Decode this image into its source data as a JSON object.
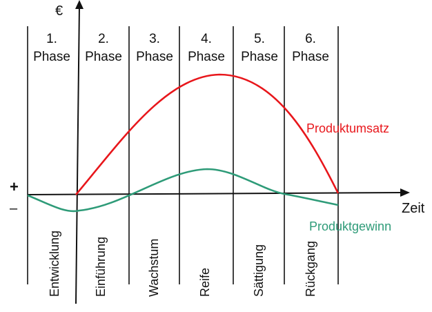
{
  "axes": {
    "y_label": "€",
    "x_label": "Zeit",
    "plus": "+",
    "minus": "–"
  },
  "phases": [
    {
      "number": "1.",
      "label": "Phase",
      "stage": "Entwicklung"
    },
    {
      "number": "2.",
      "label": "Phase",
      "stage": "Einführung"
    },
    {
      "number": "3.",
      "label": "Phase",
      "stage": "Wachstum"
    },
    {
      "number": "4.",
      "label": "Phase",
      "stage": "Reife"
    },
    {
      "number": "5.",
      "label": "Phase",
      "stage": "Sättigung"
    },
    {
      "number": "6.",
      "label": "Phase",
      "stage": "Rückgang"
    }
  ],
  "curves": {
    "revenue": {
      "label": "Produktumsatz",
      "color": "#e8161b"
    },
    "profit": {
      "label": "Produktgewinn",
      "color": "#2e9b78"
    }
  }
}
